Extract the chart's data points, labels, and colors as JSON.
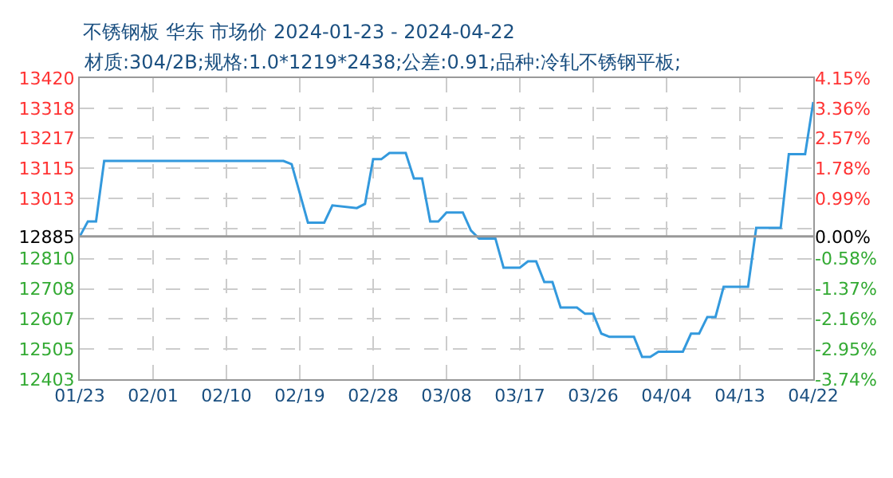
{
  "chart_data": {
    "type": "line",
    "title": "不锈钢板 华东 市场价 2024-01-23 - 2024-04-22",
    "subtitle": "材质:304/2B;规格:1.0*1219*2438;公差:0.91;品种:冷轧不锈钢平板;",
    "x": [
      "2024-01-23",
      "2024-01-24",
      "2024-01-25",
      "2024-01-26",
      "2024-02-17",
      "2024-02-18",
      "2024-02-19",
      "2024-02-20",
      "2024-02-22",
      "2024-02-23",
      "2024-02-26",
      "2024-02-27",
      "2024-02-28",
      "2024-02-29",
      "2024-03-01",
      "2024-03-03",
      "2024-03-04",
      "2024-03-05",
      "2024-03-06",
      "2024-03-07",
      "2024-03-08",
      "2024-03-10",
      "2024-03-11",
      "2024-03-12",
      "2024-03-14",
      "2024-03-15",
      "2024-03-17",
      "2024-03-18",
      "2024-03-19",
      "2024-03-20",
      "2024-03-21",
      "2024-03-22",
      "2024-03-24",
      "2024-03-25",
      "2024-03-26",
      "2024-03-27",
      "2024-03-28",
      "2024-03-31",
      "2024-04-01",
      "2024-04-02",
      "2024-04-03",
      "2024-04-06",
      "2024-04-07",
      "2024-04-08",
      "2024-04-09",
      "2024-04-10",
      "2024-04-11",
      "2024-04-14",
      "2024-04-15",
      "2024-04-18",
      "2024-04-19",
      "2024-04-21",
      "2024-04-22"
    ],
    "series": [
      {
        "color": "#3399dd",
        "values": [
          12885,
          12936,
          12936,
          13140,
          13140,
          13129,
          13031,
          12932,
          12932,
          12990,
          12981,
          12995,
          13146,
          13146,
          13167,
          13167,
          13081,
          13081,
          12936,
          12936,
          12966,
          12966,
          12905,
          12878,
          12878,
          12780,
          12780,
          12801,
          12801,
          12731,
          12731,
          12645,
          12645,
          12624,
          12624,
          12557,
          12546,
          12546,
          12478,
          12478,
          12496,
          12496,
          12557,
          12557,
          12613,
          12613,
          12715,
          12715,
          12914,
          12914,
          13163,
          13163,
          13339
        ]
      }
    ],
    "xlim": [
      "2024-01-23",
      "2024-04-22"
    ],
    "xticks": [
      {
        "value": "2024-01-23",
        "label": "01/23"
      },
      {
        "value": "2024-02-01",
        "label": "02/01"
      },
      {
        "value": "2024-02-10",
        "label": "02/10"
      },
      {
        "value": "2024-02-19",
        "label": "02/19"
      },
      {
        "value": "2024-02-28",
        "label": "02/28"
      },
      {
        "value": "2024-03-08",
        "label": "03/08"
      },
      {
        "value": "2024-03-17",
        "label": "03/17"
      },
      {
        "value": "2024-03-26",
        "label": "03/26"
      },
      {
        "value": "2024-04-04",
        "label": "04/04"
      },
      {
        "value": "2024-04-13",
        "label": "04/13"
      },
      {
        "value": "2024-04-22",
        "label": "04/22"
      }
    ],
    "ylim": [
      12403,
      13420
    ],
    "yticks": [
      12403,
      12505,
      12607,
      12708,
      12810,
      12885,
      {
        "value": 12912,
        "label": null
      },
      13013,
      13115,
      13217,
      13318,
      13420
    ],
    "y2lim": [
      -3.74,
      4.15
    ],
    "y2ticks": [
      {
        "value": -3.74,
        "label": "-3.74%"
      },
      {
        "value": -2.95,
        "label": "-2.95%"
      },
      {
        "value": -2.16,
        "label": "-2.16%"
      },
      {
        "value": -1.37,
        "label": "-1.37%"
      },
      {
        "value": -0.58,
        "label": "-0.58%"
      },
      {
        "value": 0,
        "label": "0.00%"
      },
      {
        "value": 0.99,
        "label": "0.99%"
      },
      {
        "value": 1.78,
        "label": "1.78%"
      },
      {
        "value": 2.57,
        "label": "2.57%"
      },
      {
        "value": 3.36,
        "label": "3.36%"
      },
      {
        "value": 4.15,
        "label": "4.15%"
      }
    ],
    "ref_lines": [
      {
        "axis": "y",
        "value": 12885,
        "color": "#999999"
      }
    ],
    "grid": true,
    "legend": false,
    "marker": "none",
    "line_style": "solid"
  }
}
